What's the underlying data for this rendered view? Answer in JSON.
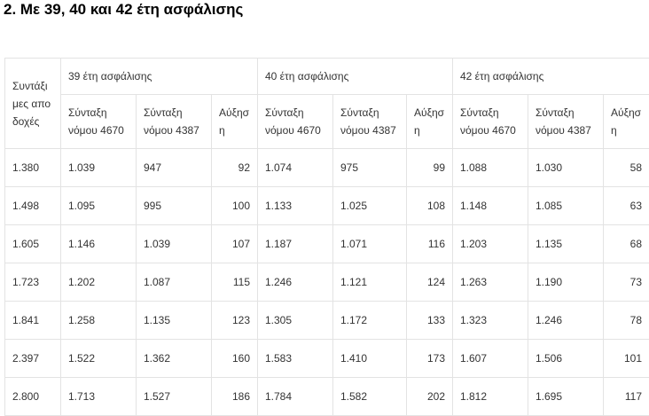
{
  "heading": "2. Με 39, 40 και 42 έτη ασφάλισης",
  "table": {
    "corner": "Συντάξιμες αποδοχές",
    "groups": [
      "39 έτη ασφάλισης",
      "40 έτη ασφάλισης",
      "42 έτη ασφάλισης"
    ],
    "subheaders": [
      "Σύνταξη νόμου 4670",
      "Σύνταξη νόμου 4387",
      "Αύξηση",
      "Σύνταξη νόμου 4670",
      "Σύνταξη νόμου 4387",
      "Αύξηση",
      "Σύνταξη νόμου 4670",
      "Σύνταξη νόμου 4387",
      "Αύξηση"
    ],
    "rows": [
      [
        "1.380",
        "1.039",
        "947",
        "92",
        "1.074",
        "975",
        "99",
        "1.088",
        "1.030",
        "58"
      ],
      [
        "1.498",
        "1.095",
        "995",
        "100",
        "1.133",
        "1.025",
        "108",
        "1.148",
        "1.085",
        "63"
      ],
      [
        "1.605",
        "1.146",
        "1.039",
        "107",
        "1.187",
        "1.071",
        "116",
        "1.203",
        "1.135",
        "68"
      ],
      [
        "1.723",
        "1.202",
        "1.087",
        "115",
        "1.246",
        "1.121",
        "124",
        "1.263",
        "1.190",
        "73"
      ],
      [
        "1.841",
        "1.258",
        "1.135",
        "123",
        "1.305",
        "1.172",
        "133",
        "1.323",
        "1.246",
        "78"
      ],
      [
        "2.397",
        "1.522",
        "1.362",
        "160",
        "1.583",
        "1.410",
        "173",
        "1.607",
        "1.506",
        "101"
      ],
      [
        "2.800",
        "1.713",
        "1.527",
        "186",
        "1.784",
        "1.582",
        "202",
        "1.812",
        "1.695",
        "117"
      ]
    ]
  }
}
